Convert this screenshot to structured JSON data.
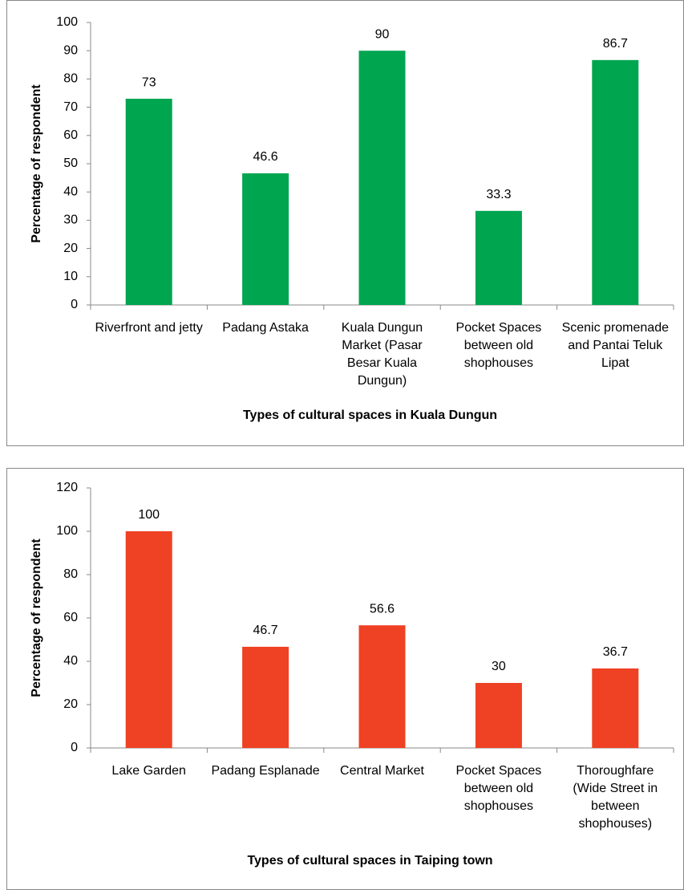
{
  "chart_data": [
    {
      "type": "bar",
      "x_label": "Types of cultural spaces in Kuala Dungun",
      "y_label": "Percentage of respondent",
      "categories": [
        "Riverfront and jetty",
        "Padang Astaka",
        "Kuala Dungun Market (Pasar Besar Kuala Dungun)",
        "Pocket Spaces between old shophouses",
        "Scenic promenade and Pantai Teluk Lipat"
      ],
      "values": [
        73,
        46.6,
        90,
        33.3,
        86.7
      ],
      "color": "#00a550",
      "ylim": [
        0,
        100
      ],
      "yticks": [
        0,
        10,
        20,
        30,
        40,
        50,
        60,
        70,
        80,
        90,
        100
      ],
      "grid": false
    },
    {
      "type": "bar",
      "x_label": "Types of cultural spaces in Taiping town",
      "y_label": "Percentage of respondent",
      "categories": [
        "Lake Garden",
        "Padang Esplanade",
        "Central Market",
        "Pocket Spaces between old shophouses",
        "Thoroughfare (Wide Street in between shophouses)"
      ],
      "values": [
        100,
        46.7,
        56.6,
        30,
        36.7
      ],
      "color": "#ef4123",
      "ylim": [
        0,
        120
      ],
      "yticks": [
        0,
        20,
        40,
        60,
        80,
        100,
        120
      ],
      "grid": false
    }
  ]
}
